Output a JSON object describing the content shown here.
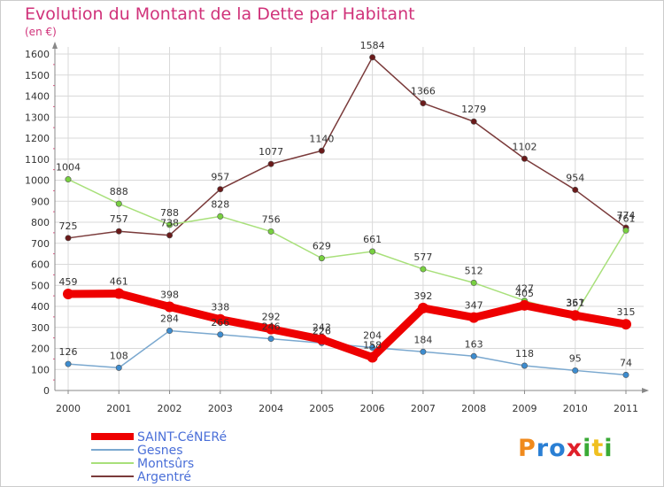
{
  "title": "Evolution du Montant de la Dette par Habitant",
  "subtitle": "(en €)",
  "logo_text": "Proxiti",
  "colors": {
    "title": "#d0327a",
    "axis": "#888888",
    "grid": "#d9d9d9",
    "label": "#333333",
    "legend_text": "#4a6fd8"
  },
  "chart_data": {
    "type": "line",
    "title": "Evolution du Montant de la Dette par Habitant",
    "subtitle": "(en €)",
    "x": [
      "2000",
      "2001",
      "2002",
      "2003",
      "2004",
      "2005",
      "2006",
      "2007",
      "2008",
      "2009",
      "2010",
      "2011"
    ],
    "ylim": [
      0,
      1600
    ],
    "yticks": [
      0,
      100,
      200,
      300,
      400,
      500,
      600,
      700,
      800,
      900,
      1000,
      1100,
      1200,
      1300,
      1400,
      1500,
      1600
    ],
    "grid": true,
    "legend_position": "bottom-left",
    "series": [
      {
        "name": "SAINT-CéNERé",
        "color": "#ee0000",
        "marker": "#ee0000",
        "bold": true,
        "values": [
          459,
          461,
          398,
          338,
          292,
          243,
          158,
          392,
          347,
          405,
          357,
          315
        ]
      },
      {
        "name": "Gesnes",
        "color": "#7aa8cf",
        "marker": "#3d8ccf",
        "values": [
          126,
          108,
          284,
          266,
          246,
          226,
          204,
          184,
          163,
          118,
          95,
          74
        ]
      },
      {
        "name": "Montsûrs",
        "color": "#a8e07a",
        "marker": "#78d040",
        "values": [
          1004,
          888,
          788,
          828,
          756,
          629,
          661,
          577,
          512,
          427,
          361,
          761
        ]
      },
      {
        "name": "Argentré",
        "color": "#7a3a3a",
        "marker": "#6a1a1a",
        "values": [
          725,
          757,
          738,
          957,
          1077,
          1140,
          1584,
          1366,
          1279,
          1102,
          954,
          774
        ]
      }
    ]
  }
}
